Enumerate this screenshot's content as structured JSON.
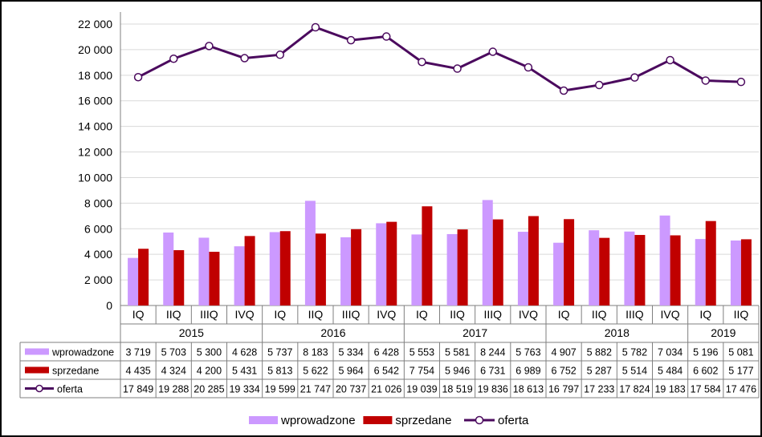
{
  "chart_data": {
    "type": "bar",
    "title": "",
    "xlabel": "",
    "ylabel": "",
    "ylim": [
      0,
      22000
    ],
    "y_ticks": [
      "0",
      "2 000",
      "4 000",
      "6 000",
      "8 000",
      "10 000",
      "12 000",
      "14 000",
      "16 000",
      "18 000",
      "20 000",
      "22 000"
    ],
    "y_tick_values": [
      0,
      2000,
      4000,
      6000,
      8000,
      10000,
      12000,
      14000,
      16000,
      18000,
      20000,
      22000
    ],
    "grid": true,
    "legend_position": "bottom",
    "categories": [
      "IQ",
      "IIQ",
      "IIIQ",
      "IVQ",
      "IQ",
      "IIQ",
      "IIIQ",
      "IVQ",
      "IQ",
      "IIQ",
      "IIIQ",
      "IVQ",
      "IQ",
      "IIQ",
      "IIIQ",
      "IVQ",
      "IQ",
      "IIQ"
    ],
    "years": [
      {
        "label": "2015",
        "count": 4
      },
      {
        "label": "2016",
        "count": 4
      },
      {
        "label": "2017",
        "count": 4
      },
      {
        "label": "2018",
        "count": 4
      },
      {
        "label": "2019",
        "count": 2
      }
    ],
    "series": [
      {
        "name": "wprowadzone",
        "type": "bar",
        "color": "#cc99ff",
        "values": [
          3719,
          5703,
          5300,
          4628,
          5737,
          8183,
          5334,
          6428,
          5553,
          5581,
          8244,
          5763,
          4907,
          5882,
          5782,
          7034,
          5196,
          5081
        ],
        "labels": [
          "3 719",
          "5 703",
          "5 300",
          "4 628",
          "5 737",
          "8 183",
          "5 334",
          "6 428",
          "5 553",
          "5 581",
          "8 244",
          "5 763",
          "4 907",
          "5 882",
          "5 782",
          "7 034",
          "5 196",
          "5 081"
        ]
      },
      {
        "name": "sprzedane",
        "type": "bar",
        "color": "#c00000",
        "values": [
          4435,
          4324,
          4200,
          5431,
          5813,
          5622,
          5964,
          6542,
          7754,
          5946,
          6731,
          6989,
          6752,
          5287,
          5514,
          5484,
          6602,
          5177
        ],
        "labels": [
          "4 435",
          "4 324",
          "4 200",
          "5 431",
          "5 813",
          "5 622",
          "5 964",
          "6 542",
          "7 754",
          "5 946",
          "6 731",
          "6 989",
          "6 752",
          "5 287",
          "5 514",
          "5 484",
          "6 602",
          "5 177"
        ]
      },
      {
        "name": "oferta",
        "type": "line",
        "color": "#4b0a5e",
        "values": [
          17849,
          19288,
          20285,
          19334,
          19599,
          21747,
          20737,
          21026,
          19039,
          18519,
          19836,
          18613,
          16797,
          17233,
          17824,
          19183,
          17584,
          17476
        ],
        "labels": [
          "17 849",
          "19 288",
          "20 285",
          "19 334",
          "19 599",
          "21 747",
          "20 737",
          "21 026",
          "19 039",
          "18 519",
          "19 836",
          "18 613",
          "16 797",
          "17 233",
          "17 824",
          "19 183",
          "17 584",
          "17 476"
        ]
      }
    ]
  }
}
